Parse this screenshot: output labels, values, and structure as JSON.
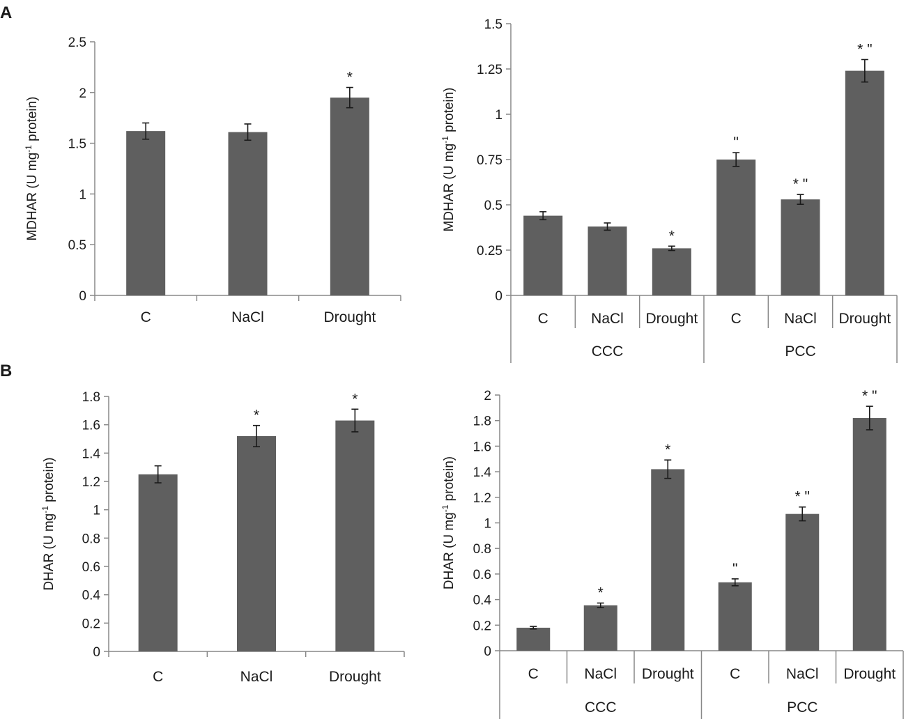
{
  "panel_labels": [
    "A",
    "B"
  ],
  "colors": {
    "bar": "#5f5f5f",
    "axis": "#888888",
    "error": "#1a1a1a",
    "text": "#1a1a1a"
  },
  "chart_data": [
    {
      "id": "A-left",
      "type": "bar",
      "categories": [
        "C",
        "NaCl",
        "Drought"
      ],
      "values": [
        1.62,
        1.61,
        1.95
      ],
      "errors": [
        0.08,
        0.08,
        0.1
      ],
      "annotations": [
        "",
        "",
        "*"
      ],
      "ylabel": {
        "main": "MDHAR (U mg",
        "sup": "-1",
        "tail": " protein)"
      },
      "ylim": [
        0,
        2.5
      ],
      "yticks": [
        0,
        0.5,
        1,
        1.5,
        2,
        2.5
      ],
      "yticklabels": [
        "0",
        "0.5",
        "1",
        "1.5",
        "2",
        "2.5"
      ],
      "groups": []
    },
    {
      "id": "A-right",
      "type": "bar",
      "categories": [
        "C",
        "NaCl",
        "Drought",
        "C",
        "NaCl",
        "Drought"
      ],
      "values": [
        0.44,
        0.38,
        0.26,
        0.75,
        0.53,
        1.24
      ],
      "errors": [
        0.022,
        0.02,
        0.012,
        0.038,
        0.027,
        0.062
      ],
      "annotations": [
        "",
        "",
        "*",
        "\"",
        "* \"",
        "* \""
      ],
      "ylabel": {
        "main": "MDHAR (U mg",
        "sup": "-1",
        "tail": " protein)"
      },
      "ylim": [
        0,
        1.5
      ],
      "yticks": [
        0,
        0.25,
        0.5,
        0.75,
        1,
        1.25,
        1.5
      ],
      "yticklabels": [
        "0",
        "0.25",
        "0.5",
        "0.75",
        "1",
        "1.25",
        "1.5"
      ],
      "groups": [
        "CCC",
        "PCC"
      ]
    },
    {
      "id": "B-left",
      "type": "bar",
      "categories": [
        "C",
        "NaCl",
        "Drought"
      ],
      "values": [
        1.25,
        1.52,
        1.63
      ],
      "errors": [
        0.06,
        0.075,
        0.08
      ],
      "annotations": [
        "",
        "*",
        "*"
      ],
      "ylabel": {
        "main": "DHAR (U mg",
        "sup": "-1",
        "tail": " protein)"
      },
      "ylim": [
        0,
        1.8
      ],
      "yticks": [
        0,
        0.2,
        0.4,
        0.6,
        0.8,
        1,
        1.2,
        1.4,
        1.6,
        1.8
      ],
      "yticklabels": [
        "0",
        "0.2",
        "0.4",
        "0.6",
        "0.8",
        "1",
        "1.2",
        "1.4",
        "1.6",
        "1.8"
      ],
      "groups": []
    },
    {
      "id": "B-right",
      "type": "bar",
      "categories": [
        "C",
        "NaCl",
        "Drought",
        "C",
        "NaCl",
        "Drought"
      ],
      "values": [
        0.18,
        0.355,
        1.42,
        0.535,
        1.07,
        1.82
      ],
      "errors": [
        0.01,
        0.018,
        0.072,
        0.027,
        0.054,
        0.092
      ],
      "annotations": [
        "",
        "*",
        "*",
        "\"",
        "* \"",
        "* \""
      ],
      "ylabel": {
        "main": "DHAR (U mg",
        "sup": "-1",
        "tail": " protein)"
      },
      "ylim": [
        0,
        2
      ],
      "yticks": [
        0,
        0.2,
        0.4,
        0.6,
        0.8,
        1,
        1.2,
        1.4,
        1.6,
        1.8,
        2
      ],
      "yticklabels": [
        "0",
        "0.2",
        "0.4",
        "0.6",
        "0.8",
        "1",
        "1.2",
        "1.4",
        "1.6",
        "1.8",
        "2"
      ],
      "groups": [
        "CCC",
        "PCC"
      ]
    }
  ]
}
